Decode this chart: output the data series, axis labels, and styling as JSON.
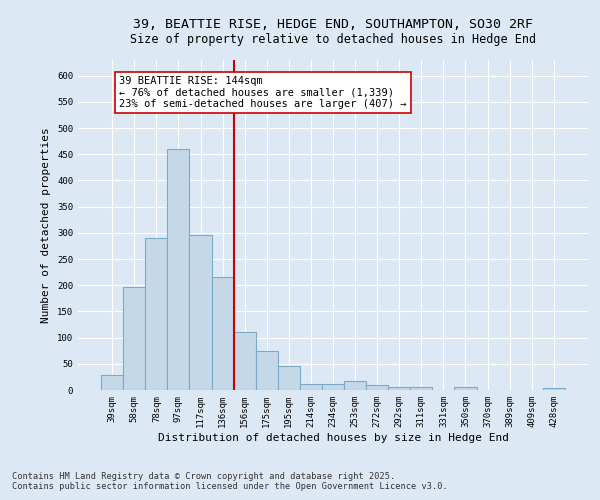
{
  "title_line1": "39, BEATTIE RISE, HEDGE END, SOUTHAMPTON, SO30 2RF",
  "title_line2": "Size of property relative to detached houses in Hedge End",
  "xlabel": "Distribution of detached houses by size in Hedge End",
  "ylabel": "Number of detached properties",
  "categories": [
    "39sqm",
    "58sqm",
    "78sqm",
    "97sqm",
    "117sqm",
    "136sqm",
    "156sqm",
    "175sqm",
    "195sqm",
    "214sqm",
    "234sqm",
    "253sqm",
    "272sqm",
    "292sqm",
    "311sqm",
    "331sqm",
    "350sqm",
    "370sqm",
    "389sqm",
    "409sqm",
    "428sqm"
  ],
  "values": [
    28,
    197,
    290,
    460,
    295,
    215,
    110,
    75,
    45,
    12,
    12,
    18,
    9,
    5,
    5,
    0,
    6,
    0,
    0,
    0,
    4
  ],
  "bar_color": "#c5d8e8",
  "bar_edge_color": "#7aaac8",
  "vline_position": 5.5,
  "vline_color": "#cc0000",
  "annotation_text": "39 BEATTIE RISE: 144sqm\n← 76% of detached houses are smaller (1,339)\n23% of semi-detached houses are larger (407) →",
  "annotation_box_color": "#ffffff",
  "annotation_box_edge_color": "#cc0000",
  "ylim": [
    0,
    630
  ],
  "yticks": [
    0,
    50,
    100,
    150,
    200,
    250,
    300,
    350,
    400,
    450,
    500,
    550,
    600
  ],
  "background_color": "#dce9f5",
  "plot_bg_color": "#dce9f5",
  "footer_line1": "Contains HM Land Registry data © Crown copyright and database right 2025.",
  "footer_line2": "Contains public sector information licensed under the Open Government Licence v3.0.",
  "title_fontsize": 9.5,
  "subtitle_fontsize": 8.5,
  "tick_fontsize": 6.5,
  "label_fontsize": 8,
  "annotation_fontsize": 7.5,
  "footer_fontsize": 6.2
}
